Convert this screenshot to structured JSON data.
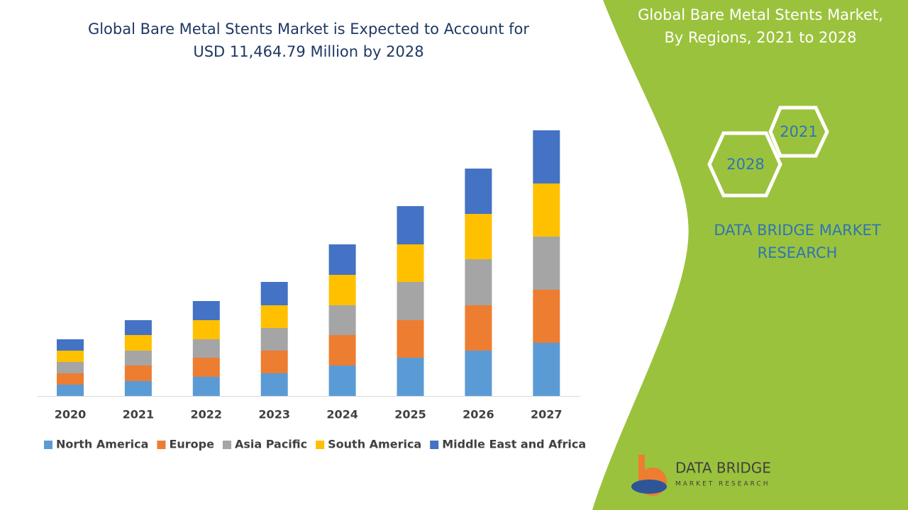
{
  "chart_data": {
    "type": "stacked_bar",
    "title": [
      "Global Bare Metal Stents Market is Expected to Account for",
      "USD 11,464.79 Million by 2028"
    ],
    "categories": [
      "2020",
      "2021",
      "2022",
      "2023",
      "2024",
      "2025",
      "2026",
      "2027"
    ],
    "series": [
      {
        "name": "North America",
        "color": "#5b9bd5",
        "values": [
          16,
          21,
          27,
          32,
          43,
          54,
          64,
          75
        ]
      },
      {
        "name": "Europe",
        "color": "#ed7d31",
        "values": [
          16,
          22,
          27,
          32,
          43,
          53,
          64,
          75
        ]
      },
      {
        "name": "Asia Pacific",
        "color": "#a5a5a5",
        "values": [
          16,
          21,
          26,
          32,
          42,
          54,
          65,
          75
        ]
      },
      {
        "name": "South America",
        "color": "#ffc000",
        "values": [
          16,
          22,
          27,
          32,
          43,
          53,
          64,
          75
        ]
      },
      {
        "name": "Middle East and Africa",
        "color": "#4472c4",
        "values": [
          16,
          21,
          27,
          33,
          43,
          54,
          64,
          75
        ]
      }
    ],
    "ylim": [
      0,
      400
    ]
  },
  "panel": {
    "title": [
      "Global Bare Metal Stents Market,",
      "By Regions, 2021 to 2028"
    ],
    "hex_labels": [
      "2021",
      "2028"
    ],
    "brand": [
      "DATA BRIDGE MARKET",
      "RESEARCH"
    ],
    "logo": [
      "DATA BRIDGE",
      "MARKET RESEARCH"
    ]
  }
}
